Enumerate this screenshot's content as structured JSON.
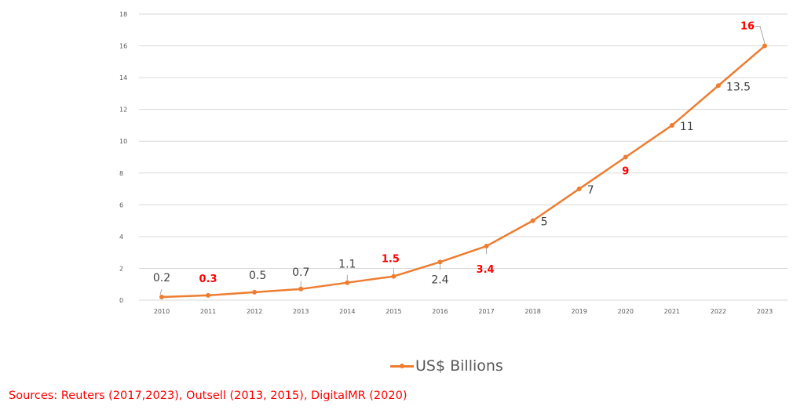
{
  "chart_data": {
    "type": "line",
    "title": "",
    "xlabel": "",
    "ylabel": "",
    "categories": [
      "2010",
      "2011",
      "2012",
      "2013",
      "2014",
      "2015",
      "2016",
      "2017",
      "2018",
      "2019",
      "2020",
      "2021",
      "2022",
      "2023"
    ],
    "series": [
      {
        "name": "US$ Billions",
        "color": "#ed7d31",
        "values": [
          0.2,
          0.3,
          0.5,
          0.7,
          1.1,
          1.5,
          2.4,
          3.4,
          5,
          7,
          9,
          11,
          13.5,
          16
        ]
      }
    ],
    "data_labels": [
      "0.2",
      "0.3",
      "0.5",
      "0.7",
      "1.1",
      "1.5",
      "2.4",
      "3.4",
      "5",
      "7",
      "9",
      "11",
      "13.5",
      "16"
    ],
    "highlighted_labels": [
      "2011",
      "2015",
      "2017",
      "2020",
      "2023"
    ],
    "highlight_color": "#ff0000",
    "ylim": [
      0,
      18
    ],
    "yticks": [
      0,
      2,
      4,
      6,
      8,
      10,
      12,
      14,
      16,
      18
    ],
    "ytick_labels": [
      "0",
      "2",
      "4",
      "6",
      "8",
      "10",
      "12",
      "14",
      "16",
      "18"
    ],
    "grid": true,
    "legend_position": "bottom-center"
  },
  "legend": {
    "label": "US$ Billions"
  },
  "sources": "Sources: Reuters (2017,2023), Outsell (2013, 2015), DigitalMR (2020)"
}
